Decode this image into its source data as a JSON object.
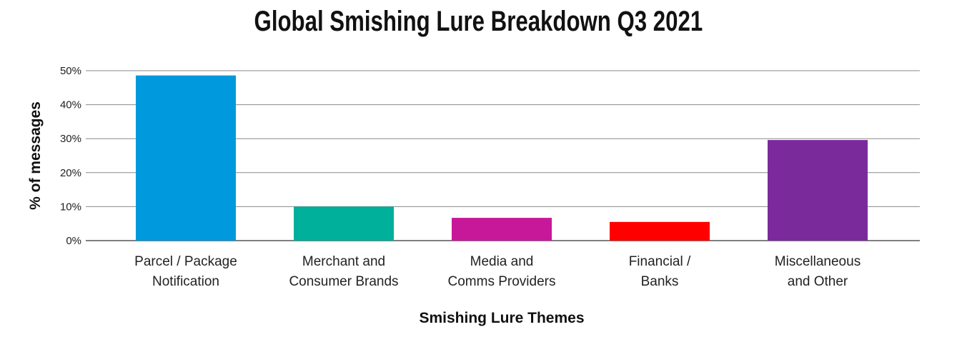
{
  "chart_data": {
    "type": "bar",
    "title": "Global Smishing Lure Breakdown Q3 2021",
    "xlabel": "Smishing Lure Themes",
    "ylabel": "% of messages",
    "categories": [
      [
        "Parcel / Package",
        "Notification"
      ],
      [
        "Merchant and",
        "Consumer Brands"
      ],
      [
        "Media and",
        "Comms Providers"
      ],
      [
        "Financial /",
        "Banks"
      ],
      [
        "Miscellaneous",
        "and Other"
      ]
    ],
    "values": [
      48.6,
      10.0,
      6.7,
      5.5,
      29.6
    ],
    "colors": [
      "#0099DD",
      "#00B09B",
      "#C8189A",
      "#FF0000",
      "#7B2A9B"
    ],
    "ylim": [
      0,
      50
    ],
    "yticks": [
      0,
      10,
      20,
      30,
      40,
      50
    ],
    "ytick_labels": [
      "0%",
      "10%",
      "20%",
      "30%",
      "40%",
      "50%"
    ],
    "grid": true,
    "legend": "none"
  }
}
